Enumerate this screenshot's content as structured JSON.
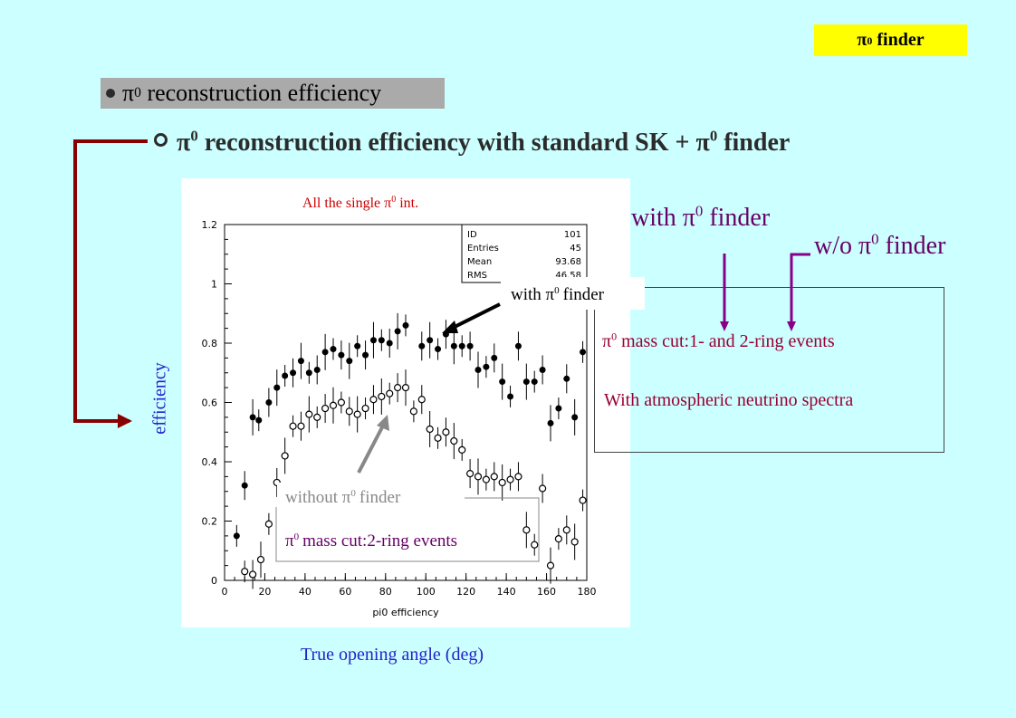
{
  "header": {
    "tag": "π",
    "tag_sup": "0",
    "tag_suffix": "finder",
    "subtitle_pi": "π",
    "subtitle_sup": "0",
    "subtitle_suffix": "reconstruction efficiency",
    "title_pi": "π",
    "title_sup": "0",
    "title_mid": "reconstruction efficiency with standard SK + π",
    "title_sup2": "0",
    "title_suffix": "finder"
  },
  "annotations": {
    "with_finder_top_pre": "with π",
    "with_finder_top_sup": "0",
    "with_finder_top_post": "finder",
    "wo_finder_pre": "w/o π",
    "wo_finder_sup": "0",
    "wo_finder_post": "finder",
    "mass_cut_1_pre": "π",
    "mass_cut_1_sup": "0",
    "mass_cut_1_post": "mass cut:1- and 2-ring events",
    "atmos": "With atmospheric neutrino spectra",
    "with_finder_label_pre": "with π",
    "with_finder_label_sup": "0",
    "with_finder_label_post": "finder",
    "without_finder_pre": "without π",
    "without_finder_sup": "0",
    "without_finder_post": "finder",
    "mass_cut_2_pre": "π",
    "mass_cut_2_sup": "0",
    "mass_cut_2_post": "mass cut:2-ring events",
    "ylabel": "efficiency",
    "xlabel": "True opening angle (deg)"
  },
  "colors": {
    "background": "#ccffff",
    "tag_bg": "#ffff00",
    "subtitle_bg": "#aaaaaa",
    "title_text": "#2b2b2b",
    "chart_title": "#cc0000",
    "axis_label": "#2222cc",
    "annotation_purple": "#660066",
    "annotation_red": "#990033",
    "arrow_dark_red": "#880000",
    "arrow_purple": "#880088"
  },
  "chart_data": {
    "type": "scatter",
    "title_pre": "All the single π",
    "title_sup": "0",
    "title_post": "int.",
    "xlabel": "pi0 efficiency",
    "ylabel": "",
    "xlim": [
      0,
      180
    ],
    "ylim": [
      0,
      1.2
    ],
    "xticks": [
      0,
      20,
      40,
      60,
      80,
      100,
      120,
      140,
      160,
      180
    ],
    "yticks": [
      0,
      0.2,
      0.4,
      0.6,
      0.8,
      1,
      1.2
    ],
    "ytick_labels": [
      "0",
      "0.2",
      "0.4",
      "0.6",
      "0.8",
      "1",
      "1.2"
    ],
    "stats": [
      {
        "key": "ID",
        "value": "101"
      },
      {
        "key": "Entries",
        "value": "45"
      },
      {
        "key": "Mean",
        "value": "93.68"
      },
      {
        "key": "RMS",
        "value": "46.58"
      }
    ],
    "series": [
      {
        "name": "with π0 finder",
        "marker": "filled",
        "x": [
          6,
          10,
          14,
          17,
          22,
          26,
          30,
          34,
          38,
          42,
          46,
          50,
          54,
          58,
          62,
          66,
          70,
          74,
          78,
          82,
          86,
          90,
          98,
          102,
          106,
          110,
          114,
          118,
          122,
          126,
          130,
          134,
          138,
          142,
          146,
          150,
          154,
          158,
          162,
          166,
          170,
          174,
          178
        ],
        "y": [
          0.15,
          0.32,
          0.55,
          0.54,
          0.6,
          0.65,
          0.69,
          0.7,
          0.74,
          0.7,
          0.71,
          0.77,
          0.78,
          0.76,
          0.74,
          0.79,
          0.76,
          0.81,
          0.81,
          0.8,
          0.84,
          0.86,
          0.79,
          0.81,
          0.78,
          0.83,
          0.79,
          0.79,
          0.79,
          0.71,
          0.72,
          0.75,
          0.67,
          0.62,
          0.79,
          0.67,
          0.67,
          0.71,
          0.53,
          0.58,
          0.68,
          0.55,
          0.77
        ]
      },
      {
        "name": "without π0 finder",
        "marker": "open",
        "x": [
          10,
          14,
          18,
          22,
          26,
          30,
          34,
          38,
          42,
          46,
          50,
          54,
          58,
          62,
          66,
          70,
          74,
          78,
          82,
          86,
          90,
          94,
          98,
          102,
          106,
          110,
          114,
          118,
          122,
          126,
          130,
          134,
          138,
          142,
          146,
          150,
          154,
          158,
          162,
          166,
          170,
          174,
          178
        ],
        "y": [
          0.03,
          0.02,
          0.07,
          0.19,
          0.33,
          0.42,
          0.52,
          0.52,
          0.56,
          0.55,
          0.58,
          0.59,
          0.6,
          0.57,
          0.56,
          0.58,
          0.61,
          0.62,
          0.63,
          0.65,
          0.65,
          0.57,
          0.61,
          0.51,
          0.48,
          0.5,
          0.47,
          0.44,
          0.36,
          0.35,
          0.34,
          0.35,
          0.33,
          0.34,
          0.35,
          0.17,
          0.12,
          0.31,
          0.05,
          0.14,
          0.17,
          0.13,
          0.27
        ]
      }
    ]
  }
}
